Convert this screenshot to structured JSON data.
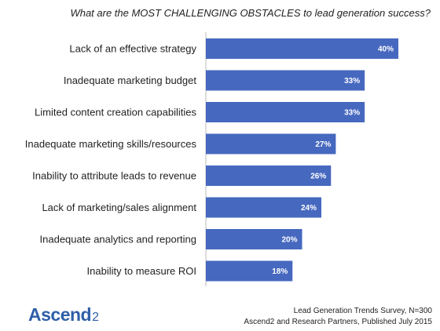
{
  "chart_data": {
    "type": "bar",
    "orientation": "horizontal",
    "title": "What are the MOST CHALLENGING OBSTACLES to lead generation success?",
    "categories": [
      "Lack of an effective strategy",
      "Inadequate marketing budget",
      "Limited content creation capabilities",
      "Inadequate marketing skills/resources",
      "Inability to attribute leads to revenue",
      "Lack of marketing/sales alignment",
      "Inadequate analytics and reporting",
      "Inability to measure ROI"
    ],
    "values": [
      40,
      33,
      33,
      27,
      26,
      24,
      20,
      18
    ],
    "value_labels": [
      "40%",
      "33%",
      "33%",
      "27%",
      "26%",
      "24%",
      "20%",
      "18%"
    ],
    "unit": "%",
    "xlim": [
      0,
      45
    ],
    "grid": false,
    "bar_color": "#4668bf"
  },
  "logo": {
    "word": "Ascend",
    "number": "2"
  },
  "source": {
    "line1": "Lead Generation Trends Survey, N=300",
    "line2": "Ascend2 and Research Partners, Published July 2015"
  }
}
